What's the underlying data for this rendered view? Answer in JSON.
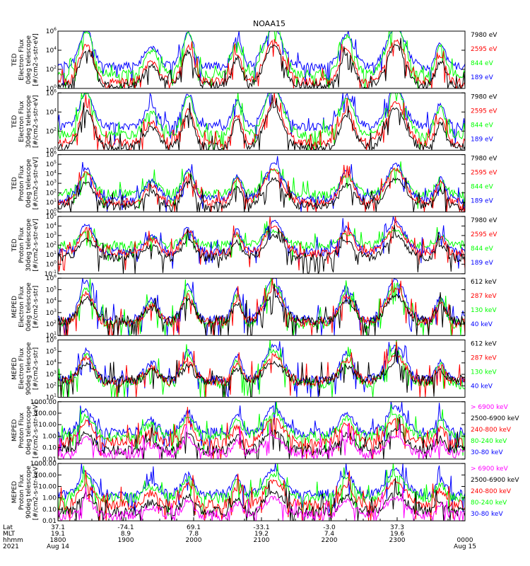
{
  "title": "NOAA15",
  "colors": {
    "black": "#000000",
    "red": "#ff0000",
    "green": "#00ff00",
    "blue": "#0000ff",
    "magenta": "#ff00ff"
  },
  "chart_data": {
    "type": "line",
    "title": "NOAA15",
    "x_time_ticks": [
      "1800",
      "1900",
      "2000",
      "2100",
      "2200",
      "2300",
      "0000"
    ],
    "footer": {
      "row_labels": [
        "Lat",
        "MLT",
        "hhmm",
        "2021"
      ],
      "columns": [
        {
          "lat": "37.1",
          "mlt": "19.1",
          "hhmm": "1800",
          "date": "Aug 14"
        },
        {
          "lat": "-74.1",
          "mlt": "8.9",
          "hhmm": "1900",
          "date": ""
        },
        {
          "lat": "69.1",
          "mlt": "7.8",
          "hhmm": "2000",
          "date": ""
        },
        {
          "lat": "-33.1",
          "mlt": "19.2",
          "hhmm": "2100",
          "date": ""
        },
        {
          "lat": "-3.0",
          "mlt": "7.4",
          "hhmm": "2200",
          "date": ""
        },
        {
          "lat": "37.3",
          "mlt": "19.6",
          "hhmm": "2300",
          "date": ""
        },
        {
          "lat": "",
          "mlt": "",
          "hhmm": "0000",
          "date": "Aug 15"
        }
      ]
    },
    "panels": [
      {
        "ylabel": [
          "TED",
          "Electron Flux",
          "0deg telescope",
          "[#/cm2-s-str-eV]"
        ],
        "yscale": "log",
        "ylim": [
          1,
          1000000
        ],
        "ticks": [
          {
            "v": 1,
            "t": "10",
            "e": "0"
          },
          {
            "v": 100,
            "t": "10",
            "e": "2"
          },
          {
            "v": 10000,
            "t": "10",
            "e": "4"
          },
          {
            "v": 1000000,
            "t": "10",
            "e": "6"
          }
        ],
        "legend": [
          {
            "text": "7980 eV",
            "color": "#000000"
          },
          {
            "text": "2595 eV",
            "color": "#ff0000"
          },
          {
            "text": "844 eV",
            "color": "#00ff00"
          },
          {
            "text": "189 eV",
            "color": "#0000ff"
          }
        ],
        "series": [
          {
            "name": "189 eV",
            "color": "#0000ff",
            "base": 200,
            "peak": 3000000,
            "seed": 1
          },
          {
            "name": "844 eV",
            "color": "#00ff00",
            "base": 30,
            "peak": 3000000,
            "seed": 2
          },
          {
            "name": "2595 eV",
            "color": "#ff0000",
            "base": 5,
            "peak": 100000,
            "seed": 3
          },
          {
            "name": "7980 eV",
            "color": "#000000",
            "base": 2,
            "peak": 30000,
            "seed": 4
          }
        ]
      },
      {
        "ylabel": [
          "TED",
          "Electron Flux",
          "30deg telescope",
          "[#/cm2-s-str-eV]"
        ],
        "yscale": "log",
        "ylim": [
          1,
          1000000
        ],
        "ticks": [
          {
            "v": 1,
            "t": "10",
            "e": "0"
          },
          {
            "v": 100,
            "t": "10",
            "e": "2"
          },
          {
            "v": 10000,
            "t": "10",
            "e": "4"
          },
          {
            "v": 1000000,
            "t": "10",
            "e": "6"
          }
        ],
        "legend": [
          {
            "text": "7980 eV",
            "color": "#000000"
          },
          {
            "text": "2595 eV",
            "color": "#ff0000"
          },
          {
            "text": "844 eV",
            "color": "#00ff00"
          },
          {
            "text": "189 eV",
            "color": "#0000ff"
          }
        ],
        "series": [
          {
            "name": "189 eV",
            "color": "#0000ff",
            "base": 300,
            "peak": 3000000,
            "seed": 5
          },
          {
            "name": "844 eV",
            "color": "#00ff00",
            "base": 40,
            "peak": 3000000,
            "seed": 6
          },
          {
            "name": "2595 eV",
            "color": "#ff0000",
            "base": 6,
            "peak": 100000,
            "seed": 7
          },
          {
            "name": "7980 eV",
            "color": "#000000",
            "base": 2,
            "peak": 30000,
            "seed": 8
          }
        ]
      },
      {
        "ylabel": [
          "TED",
          "Proton Flux",
          "0deg telescope",
          "[#/cm2-s-str-eV]"
        ],
        "yscale": "log",
        "ylim": [
          1,
          1000000
        ],
        "ticks": [
          {
            "v": 1,
            "t": "10",
            "e": "0"
          },
          {
            "v": 10,
            "t": "10",
            "e": "1"
          },
          {
            "v": 100,
            "t": "10",
            "e": "2"
          },
          {
            "v": 1000,
            "t": "10",
            "e": "3"
          },
          {
            "v": 10000,
            "t": "10",
            "e": "4"
          },
          {
            "v": 100000,
            "t": "10",
            "e": "5"
          },
          {
            "v": 1000000,
            "t": "10",
            "e": "6"
          }
        ],
        "legend": [
          {
            "text": "7980 eV",
            "color": "#000000"
          },
          {
            "text": "2595 eV",
            "color": "#ff0000"
          },
          {
            "text": "844 eV",
            "color": "#00ff00"
          },
          {
            "text": "189 eV",
            "color": "#0000ff"
          }
        ],
        "series": [
          {
            "name": "844 eV",
            "color": "#00ff00",
            "base": 80,
            "peak": 30000,
            "seed": 9
          },
          {
            "name": "189 eV",
            "color": "#0000ff",
            "base": 20,
            "peak": 100000,
            "seed": 10
          },
          {
            "name": "2595 eV",
            "color": "#ff0000",
            "base": 10,
            "peak": 30000,
            "seed": 11
          },
          {
            "name": "7980 eV",
            "color": "#000000",
            "base": 4,
            "peak": 3000,
            "seed": 12
          }
        ]
      },
      {
        "ylabel": [
          "TED",
          "Proton Flux",
          "30deg telescope",
          "[#/cm2-s-str-eV]"
        ],
        "yscale": "log",
        "ylim": [
          0.1,
          100000
        ],
        "ticks": [
          {
            "v": 0.1,
            "t": "10",
            "e": "-1"
          },
          {
            "v": 1,
            "t": "10",
            "e": "0"
          },
          {
            "v": 10,
            "t": "10",
            "e": "1"
          },
          {
            "v": 100,
            "t": "10",
            "e": "2"
          },
          {
            "v": 1000,
            "t": "10",
            "e": "3"
          },
          {
            "v": 10000,
            "t": "10",
            "e": "4"
          },
          {
            "v": 100000,
            "t": "10",
            "e": "5"
          }
        ],
        "legend": [
          {
            "text": "7980 eV",
            "color": "#000000"
          },
          {
            "text": "2595 eV",
            "color": "#ff0000"
          },
          {
            "text": "844 eV",
            "color": "#00ff00"
          },
          {
            "text": "189 eV",
            "color": "#0000ff"
          }
        ],
        "series": [
          {
            "name": "844 eV",
            "color": "#00ff00",
            "base": 100,
            "peak": 3000,
            "seed": 13
          },
          {
            "name": "189 eV",
            "color": "#0000ff",
            "base": 20,
            "peak": 30000,
            "seed": 14
          },
          {
            "name": "2595 eV",
            "color": "#ff0000",
            "base": 15,
            "peak": 10000,
            "seed": 15
          },
          {
            "name": "7980 eV",
            "color": "#000000",
            "base": 5,
            "peak": 1000,
            "seed": 16
          }
        ]
      },
      {
        "ylabel": [
          "MEPED",
          "Electron Flux",
          "0deg telescope",
          "[#/cm2-s-str]"
        ],
        "yscale": "log",
        "ylim": [
          10,
          1000000
        ],
        "ticks": [
          {
            "v": 10,
            "t": "10",
            "e": "1"
          },
          {
            "v": 100,
            "t": "10",
            "e": "2"
          },
          {
            "v": 1000,
            "t": "10",
            "e": "3"
          },
          {
            "v": 10000,
            "t": "10",
            "e": "4"
          },
          {
            "v": 100000,
            "t": "10",
            "e": "5"
          },
          {
            "v": 1000000,
            "t": "10",
            "e": "6"
          }
        ],
        "legend": [
          {
            "text": "612 keV",
            "color": "#000000"
          },
          {
            "text": "287 keV",
            "color": "#ff0000"
          },
          {
            "text": "130 keV",
            "color": "#00ff00"
          },
          {
            "text": "40 keV",
            "color": "#0000ff"
          }
        ],
        "series": [
          {
            "name": "40 keV",
            "color": "#0000ff",
            "base": 200,
            "peak": 1000000,
            "seed": 17
          },
          {
            "name": "130 keV",
            "color": "#00ff00",
            "base": 100,
            "peak": 300000,
            "seed": 18
          },
          {
            "name": "287 keV",
            "color": "#ff0000",
            "base": 150,
            "peak": 100000,
            "seed": 19
          },
          {
            "name": "612 keV",
            "color": "#000000",
            "base": 200,
            "peak": 30000,
            "seed": 20
          }
        ]
      },
      {
        "ylabel": [
          "MEPED",
          "Electron Flux",
          "90deg telescope",
          "[#/cm2-s-str]"
        ],
        "yscale": "log",
        "ylim": [
          10,
          1000000
        ],
        "ticks": [
          {
            "v": 10,
            "t": "10",
            "e": "1"
          },
          {
            "v": 100,
            "t": "10",
            "e": "2"
          },
          {
            "v": 1000,
            "t": "10",
            "e": "3"
          },
          {
            "v": 10000,
            "t": "10",
            "e": "4"
          },
          {
            "v": 100000,
            "t": "10",
            "e": "5"
          },
          {
            "v": 1000000,
            "t": "10",
            "e": "6"
          }
        ],
        "legend": [
          {
            "text": "612 keV",
            "color": "#000000"
          },
          {
            "text": "287 keV",
            "color": "#ff0000"
          },
          {
            "text": "130 keV",
            "color": "#00ff00"
          },
          {
            "text": "40 keV",
            "color": "#0000ff"
          }
        ],
        "series": [
          {
            "name": "40 keV",
            "color": "#0000ff",
            "base": 300,
            "peak": 300000,
            "seed": 21
          },
          {
            "name": "130 keV",
            "color": "#00ff00",
            "base": 150,
            "peak": 100000,
            "seed": 22
          },
          {
            "name": "287 keV",
            "color": "#ff0000",
            "base": 250,
            "peak": 50000,
            "seed": 23
          },
          {
            "name": "612 keV",
            "color": "#000000",
            "base": 300,
            "peak": 10000,
            "seed": 24
          }
        ]
      },
      {
        "ylabel": [
          "MEPED",
          "Proton Flux",
          "0deg telescope",
          "[#/cm2-s-str-keV]"
        ],
        "yscale": "log",
        "ylim": [
          0.01,
          1000
        ],
        "ticks": [
          {
            "v": 0.01,
            "t": "0.01",
            "e": ""
          },
          {
            "v": 0.1,
            "t": "0.10",
            "e": ""
          },
          {
            "v": 1,
            "t": "1.00",
            "e": ""
          },
          {
            "v": 10,
            "t": "10.00",
            "e": ""
          },
          {
            "v": 100,
            "t": "100.00",
            "e": ""
          },
          {
            "v": 1000,
            "t": "1000.00",
            "e": ""
          }
        ],
        "legend": [
          {
            "text": "> 6900 keV",
            "color": "#ff00ff"
          },
          {
            "text": "2500-6900 keV",
            "color": "#000000"
          },
          {
            "text": "240-800 keV",
            "color": "#ff0000"
          },
          {
            "text": "80-240 keV",
            "color": "#00ff00"
          },
          {
            "text": "30-80 keV",
            "color": "#0000ff"
          }
        ],
        "series": [
          {
            "name": "30-80 keV",
            "color": "#0000ff",
            "base": 2,
            "peak": 300,
            "seed": 25
          },
          {
            "name": "80-240 keV",
            "color": "#00ff00",
            "base": 1,
            "peak": 100,
            "seed": 26
          },
          {
            "name": "240-800 keV",
            "color": "#ff0000",
            "base": 0.25,
            "peak": 30,
            "seed": 27
          },
          {
            "name": "2500-6900 keV",
            "color": "#000000",
            "base": 0.06,
            "peak": 3,
            "seed": 28
          },
          {
            "name": "> 6900 keV",
            "color": "#ff00ff",
            "base": 0.03,
            "peak": 1,
            "seed": 29
          }
        ]
      },
      {
        "ylabel": [
          "MEPED",
          "Proton Flux",
          "90deg telescope",
          "[#/cm2-s-str-keV]"
        ],
        "yscale": "log",
        "ylim": [
          0.01,
          1000
        ],
        "ticks": [
          {
            "v": 0.01,
            "t": "0.01",
            "e": ""
          },
          {
            "v": 0.1,
            "t": "0.10",
            "e": ""
          },
          {
            "v": 1,
            "t": "1.00",
            "e": ""
          },
          {
            "v": 10,
            "t": "10.00",
            "e": ""
          },
          {
            "v": 100,
            "t": "100.00",
            "e": ""
          },
          {
            "v": 1000,
            "t": "1000.00",
            "e": ""
          }
        ],
        "legend": [
          {
            "text": "> 6900 keV",
            "color": "#ff00ff"
          },
          {
            "text": "2500-6900 keV",
            "color": "#000000"
          },
          {
            "text": "240-800 keV",
            "color": "#ff0000"
          },
          {
            "text": "80-240 keV",
            "color": "#00ff00"
          },
          {
            "text": "30-80 keV",
            "color": "#0000ff"
          }
        ],
        "series": [
          {
            "name": "30-80 keV",
            "color": "#0000ff",
            "base": 2,
            "peak": 300,
            "seed": 30
          },
          {
            "name": "80-240 keV",
            "color": "#00ff00",
            "base": 1,
            "peak": 100,
            "seed": 31
          },
          {
            "name": "240-800 keV",
            "color": "#ff0000",
            "base": 0.25,
            "peak": 30,
            "seed": 32
          },
          {
            "name": "2500-6900 keV",
            "color": "#000000",
            "base": 0.06,
            "peak": 3,
            "seed": 33
          },
          {
            "name": "> 6900 keV",
            "color": "#ff00ff",
            "base": 0.03,
            "peak": 1,
            "seed": 34
          }
        ]
      }
    ],
    "passes": [
      {
        "t": 0.07,
        "w": 0.03,
        "amp": 0.9
      },
      {
        "t": 0.23,
        "w": 0.03,
        "amp": 0.5
      },
      {
        "t": 0.32,
        "w": 0.025,
        "amp": 0.85
      },
      {
        "t": 0.44,
        "w": 0.02,
        "amp": 0.7
      },
      {
        "t": 0.53,
        "w": 0.04,
        "amp": 1.0
      },
      {
        "t": 0.71,
        "w": 0.03,
        "amp": 0.8
      },
      {
        "t": 0.83,
        "w": 0.04,
        "amp": 1.0
      },
      {
        "t": 0.94,
        "w": 0.02,
        "amp": 0.6
      }
    ]
  }
}
